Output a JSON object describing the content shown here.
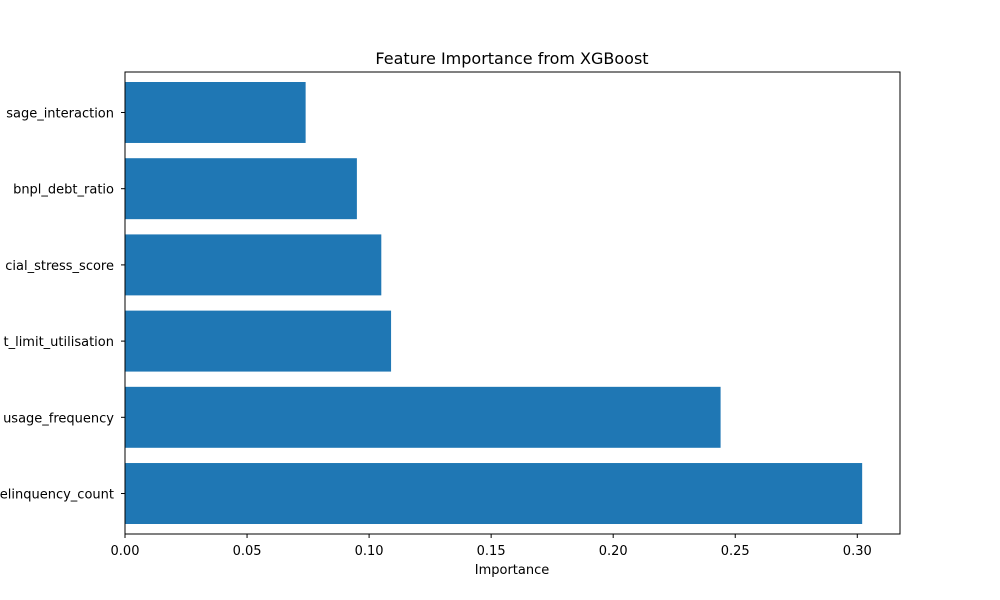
{
  "chart_data": {
    "type": "bar",
    "orientation": "horizontal",
    "title": "Feature Importance from XGBoost",
    "xlabel": "Importance",
    "ylabel": "",
    "xlim": [
      0,
      0.3175
    ],
    "xticks": [
      0.0,
      0.05,
      0.1,
      0.15,
      0.2,
      0.25,
      0.3
    ],
    "xtick_labels": [
      "0.00",
      "0.05",
      "0.10",
      "0.15",
      "0.20",
      "0.25",
      "0.30"
    ],
    "categories": [
      "delinquency_count",
      "usage_frequency",
      "credit_limit_utilisation",
      "financial_stress_score",
      "bnpl_debt_ratio",
      "usage_interaction"
    ],
    "visible_category_labels": [
      "elinquency_count",
      "usage_frequency",
      "t_limit_utilisation",
      "cial_stress_score",
      "bnpl_debt_ratio",
      "sage_interaction"
    ],
    "values": [
      0.302,
      0.244,
      0.109,
      0.105,
      0.095,
      0.074
    ],
    "bar_color": "#1f77b4",
    "grid": false,
    "legend": "none"
  }
}
